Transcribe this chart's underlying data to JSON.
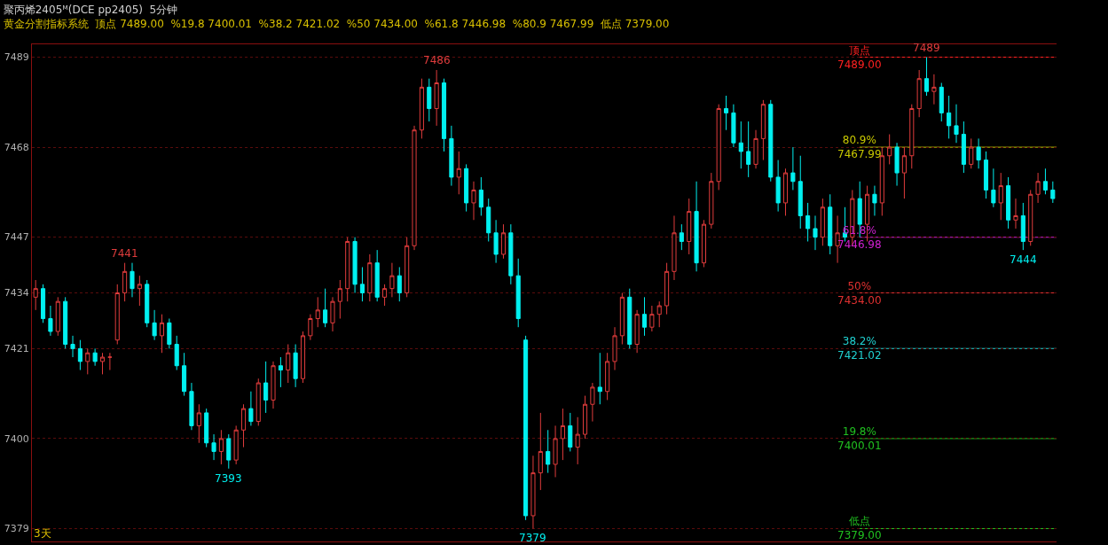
{
  "chart_data": {
    "type": "candlestick",
    "title": "聚丙烯2405ᴹ(DCE pp2405)  5分钟",
    "subtitle": "黄金分割指标系统  顶点 7489.00  %19.8 7400.01  %38.2 7421.02  %50 7434.00  %61.8 7446.98  %80.9 7467.99  低点 7379.00",
    "annotations": [
      "3天",
      {
        "text": "7441",
        "y": 7441
      },
      {
        "text": "7393",
        "y": 7393
      },
      {
        "text": "7486",
        "y": 7486
      },
      {
        "text": "7379",
        "y": 7379
      },
      {
        "text": "7489",
        "y": 7489
      },
      {
        "text": "7444",
        "y": 7444
      }
    ],
    "categories": [
      null,
      null,
      null,
      null,
      null,
      null,
      null,
      null,
      null,
      null,
      null,
      null,
      null,
      null,
      null,
      null,
      null,
      null,
      null,
      null,
      null,
      null,
      null,
      null,
      null,
      null,
      null,
      null,
      null,
      null,
      null,
      null,
      null,
      null,
      null,
      null,
      null,
      null,
      null,
      null,
      null,
      null,
      null,
      null,
      null,
      null,
      null,
      null,
      null,
      null,
      null,
      null,
      null,
      null,
      null,
      null,
      null,
      null,
      null,
      null,
      null,
      null,
      null,
      null,
      null,
      null,
      null,
      null,
      null,
      null,
      null,
      null,
      null,
      null,
      null,
      null,
      null,
      null,
      null,
      null,
      null,
      null,
      null,
      null,
      null,
      null,
      null,
      null,
      null,
      null,
      null,
      null,
      null,
      null,
      null,
      null,
      null,
      null,
      null,
      null,
      null,
      null,
      null,
      null,
      null,
      null,
      null,
      null,
      null,
      null,
      null,
      null,
      null,
      null,
      null,
      null,
      null,
      null,
      null,
      null,
      null,
      null,
      null,
      null,
      null,
      null,
      null,
      null,
      null,
      null,
      null,
      null,
      null,
      null,
      null,
      null,
      null,
      null
    ],
    "ohlc": [
      [
        7433,
        7437,
        7430,
        7435
      ],
      [
        7435,
        7436,
        7427,
        7428
      ],
      [
        7428,
        7431,
        7424,
        7425
      ],
      [
        7425,
        7433,
        7424,
        7432
      ],
      [
        7432,
        7433,
        7421,
        7422
      ],
      [
        7422,
        7424,
        7419,
        7421
      ],
      [
        7421,
        7423,
        7416,
        7418
      ],
      [
        7418,
        7421,
        7415,
        7420
      ],
      [
        7420,
        7421,
        7417,
        7418
      ],
      [
        7418,
        7420,
        7415,
        7419
      ],
      [
        7419,
        7420,
        7416,
        7419
      ],
      [
        7423,
        7436,
        7422,
        7434
      ],
      [
        7434,
        7441,
        7432,
        7439
      ],
      [
        7439,
        7441,
        7433,
        7435
      ],
      [
        7435,
        7438,
        7431,
        7436
      ],
      [
        7436,
        7437,
        7426,
        7427
      ],
      [
        7427,
        7430,
        7423,
        7424
      ],
      [
        7424,
        7429,
        7420,
        7427
      ],
      [
        7427,
        7428,
        7421,
        7422
      ],
      [
        7422,
        7424,
        7416,
        7417
      ],
      [
        7417,
        7420,
        7410,
        7411
      ],
      [
        7411,
        7413,
        7402,
        7403
      ],
      [
        7403,
        7408,
        7399,
        7406
      ],
      [
        7406,
        7407,
        7398,
        7399
      ],
      [
        7399,
        7401,
        7395,
        7397
      ],
      [
        7397,
        7402,
        7394,
        7400
      ],
      [
        7400,
        7401,
        7393,
        7395
      ],
      [
        7395,
        7403,
        7394,
        7402
      ],
      [
        7402,
        7408,
        7398,
        7407
      ],
      [
        7407,
        7411,
        7403,
        7404
      ],
      [
        7404,
        7414,
        7403,
        7413
      ],
      [
        7413,
        7418,
        7406,
        7409
      ],
      [
        7409,
        7418,
        7407,
        7417
      ],
      [
        7417,
        7419,
        7412,
        7416
      ],
      [
        7416,
        7422,
        7413,
        7420
      ],
      [
        7420,
        7422,
        7412,
        7414
      ],
      [
        7414,
        7425,
        7413,
        7424
      ],
      [
        7424,
        7429,
        7423,
        7428
      ],
      [
        7428,
        7433,
        7426,
        7430
      ],
      [
        7430,
        7435,
        7426,
        7427
      ],
      [
        7427,
        7433,
        7425,
        7432
      ],
      [
        7432,
        7437,
        7428,
        7435
      ],
      [
        7435,
        7447,
        7432,
        7446
      ],
      [
        7446,
        7447,
        7434,
        7436
      ],
      [
        7436,
        7440,
        7432,
        7434
      ],
      [
        7434,
        7443,
        7432,
        7441
      ],
      [
        7441,
        7444,
        7432,
        7433
      ],
      [
        7433,
        7436,
        7431,
        7435
      ],
      [
        7435,
        7441,
        7433,
        7438
      ],
      [
        7438,
        7440,
        7432,
        7434
      ],
      [
        7434,
        7447,
        7433,
        7445
      ],
      [
        7445,
        7473,
        7444,
        7472
      ],
      [
        7472,
        7484,
        7470,
        7482
      ],
      [
        7482,
        7484,
        7474,
        7477
      ],
      [
        7477,
        7486,
        7473,
        7483
      ],
      [
        7483,
        7484,
        7467,
        7470
      ],
      [
        7470,
        7473,
        7459,
        7461
      ],
      [
        7461,
        7467,
        7457,
        7463
      ],
      [
        7463,
        7464,
        7453,
        7455
      ],
      [
        7455,
        7460,
        7451,
        7458
      ],
      [
        7458,
        7461,
        7452,
        7454
      ],
      [
        7454,
        7456,
        7446,
        7448
      ],
      [
        7448,
        7451,
        7441,
        7443
      ],
      [
        7443,
        7450,
        7442,
        7448
      ],
      [
        7448,
        7450,
        7436,
        7438
      ],
      [
        7438,
        7442,
        7426,
        7428
      ],
      [
        7423,
        7424,
        7381,
        7382
      ],
      [
        7382,
        7396,
        7379,
        7392
      ],
      [
        7392,
        7406,
        7388,
        7397
      ],
      [
        7397,
        7402,
        7392,
        7394
      ],
      [
        7394,
        7403,
        7391,
        7400
      ],
      [
        7400,
        7407,
        7395,
        7403
      ],
      [
        7403,
        7406,
        7397,
        7398
      ],
      [
        7398,
        7405,
        7394,
        7401
      ],
      [
        7401,
        7410,
        7400,
        7408
      ],
      [
        7408,
        7413,
        7404,
        7412
      ],
      [
        7412,
        7420,
        7408,
        7411
      ],
      [
        7411,
        7420,
        7409,
        7418
      ],
      [
        7418,
        7426,
        7416,
        7424
      ],
      [
        7424,
        7434,
        7422,
        7433
      ],
      [
        7433,
        7435,
        7421,
        7422
      ],
      [
        7422,
        7430,
        7420,
        7429
      ],
      [
        7429,
        7433,
        7424,
        7426
      ],
      [
        7426,
        7431,
        7425,
        7429
      ],
      [
        7429,
        7432,
        7426,
        7431
      ],
      [
        7431,
        7441,
        7429,
        7439
      ],
      [
        7439,
        7452,
        7437,
        7448
      ],
      [
        7448,
        7450,
        7444,
        7446
      ],
      [
        7446,
        7456,
        7443,
        7453
      ],
      [
        7453,
        7460,
        7439,
        7441
      ],
      [
        7441,
        7451,
        7440,
        7450
      ],
      [
        7450,
        7462,
        7449,
        7460
      ],
      [
        7460,
        7478,
        7458,
        7477
      ],
      [
        7477,
        7480,
        7472,
        7476
      ],
      [
        7476,
        7478,
        7468,
        7469
      ],
      [
        7469,
        7474,
        7463,
        7467
      ],
      [
        7467,
        7474,
        7461,
        7464
      ],
      [
        7464,
        7472,
        7463,
        7470
      ],
      [
        7470,
        7479,
        7465,
        7478
      ],
      [
        7478,
        7479,
        7460,
        7461
      ],
      [
        7461,
        7465,
        7453,
        7455
      ],
      [
        7455,
        7463,
        7452,
        7462
      ],
      [
        7462,
        7468,
        7458,
        7460
      ],
      [
        7460,
        7466,
        7449,
        7452
      ],
      [
        7452,
        7455,
        7446,
        7449
      ],
      [
        7449,
        7452,
        7444,
        7447
      ],
      [
        7447,
        7456,
        7445,
        7454
      ],
      [
        7454,
        7457,
        7443,
        7445
      ],
      [
        7445,
        7452,
        7441,
        7448
      ],
      [
        7448,
        7454,
        7446,
        7447
      ],
      [
        7447,
        7458,
        7445,
        7456
      ],
      [
        7456,
        7460,
        7447,
        7450
      ],
      [
        7450,
        7459,
        7446,
        7457
      ],
      [
        7457,
        7459,
        7452,
        7455
      ],
      [
        7455,
        7468,
        7452,
        7466
      ],
      [
        7466,
        7471,
        7464,
        7468
      ],
      [
        7468,
        7469,
        7459,
        7462
      ],
      [
        7462,
        7468,
        7456,
        7466
      ],
      [
        7466,
        7478,
        7463,
        7477
      ],
      [
        7477,
        7486,
        7475,
        7484
      ],
      [
        7484,
        7489,
        7480,
        7481
      ],
      [
        7481,
        7485,
        7478,
        7482
      ],
      [
        7482,
        7483,
        7474,
        7476
      ],
      [
        7476,
        7480,
        7470,
        7473
      ],
      [
        7473,
        7478,
        7469,
        7471
      ],
      [
        7471,
        7474,
        7462,
        7464
      ],
      [
        7464,
        7470,
        7463,
        7468
      ],
      [
        7468,
        7470,
        7463,
        7465
      ],
      [
        7465,
        7467,
        7456,
        7458
      ],
      [
        7458,
        7463,
        7454,
        7455
      ],
      [
        7455,
        7462,
        7451,
        7459
      ],
      [
        7459,
        7461,
        7449,
        7451
      ],
      [
        7451,
        7456,
        7449,
        7452
      ],
      [
        7452,
        7455,
        7444,
        7446
      ],
      [
        7446,
        7458,
        7445,
        7457
      ],
      [
        7457,
        7462,
        7455,
        7460
      ],
      [
        7460,
        7463,
        7457,
        7458
      ],
      [
        7458,
        7460,
        7455,
        7456
      ]
    ],
    "ylim": [
      7376,
      7492
    ],
    "yticks": [
      7379,
      7400,
      7421,
      7434,
      7447,
      7468,
      7489
    ],
    "grid": "y",
    "ref_lines": [
      {
        "axis": "y",
        "value": 7489.0,
        "label": "顶点\n7489.00",
        "color": "#ff2020"
      },
      {
        "axis": "y",
        "value": 7467.99,
        "label": "80.9%\n7467.99",
        "color": "#c8c800"
      },
      {
        "axis": "y",
        "value": 7446.98,
        "label": "61.8%\n7446.98",
        "color": "#d020d0"
      },
      {
        "axis": "y",
        "value": 7434.0,
        "label": "50%\n7434.00",
        "color": "#e03030"
      },
      {
        "axis": "y",
        "value": 7421.02,
        "label": "38.2%\n7421.02",
        "color": "#20d0d0"
      },
      {
        "axis": "y",
        "value": 7400.01,
        "label": "19.8%\n7400.01",
        "color": "#20c020"
      },
      {
        "axis": "y",
        "value": 7379.0,
        "label": "低点\n7379.00",
        "color": "#20c020"
      }
    ]
  }
}
